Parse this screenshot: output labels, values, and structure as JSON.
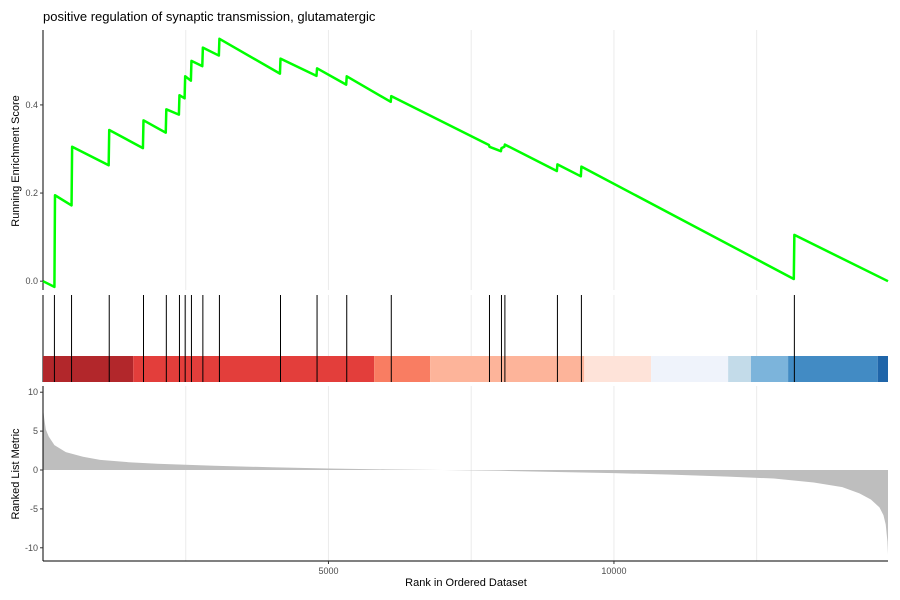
{
  "chart_data": {
    "type": "line",
    "title": "positive regulation of synaptic transmission, glutamatergic",
    "xlabel": "Rank in Ordered Dataset",
    "xlim": [
      0,
      14800
    ],
    "x_ticks": [
      5000,
      10000
    ],
    "x_gridlines": [
      2500,
      5000,
      7500,
      10000,
      12500
    ],
    "grid": true,
    "line_color": "#00ff00",
    "panels": [
      {
        "name": "running_enrichment_score",
        "ylabel": "Running Enrichment Score",
        "ylim": [
          -0.02,
          0.57
        ],
        "y_ticks": [
          0.0,
          0.2,
          0.4
        ],
        "y_tick_labels": [
          "0.0",
          "0.2",
          "0.4"
        ],
        "es_curve": {
          "x": [
            0,
            200,
            210,
            500,
            510,
            1150,
            1160,
            1750,
            1760,
            2150,
            2160,
            2380,
            2390,
            2480,
            2490,
            2590,
            2600,
            2790,
            2800,
            3080,
            3090,
            4150,
            4160,
            4790,
            4800,
            5310,
            5320,
            6090,
            6100,
            7810,
            7820,
            8020,
            8030,
            8080,
            8090,
            9000,
            9010,
            9420,
            9430,
            13150,
            13160,
            14800
          ],
          "y": [
            0.0,
            -0.013,
            0.195,
            0.172,
            0.305,
            0.263,
            0.343,
            0.302,
            0.365,
            0.337,
            0.39,
            0.378,
            0.422,
            0.415,
            0.465,
            0.455,
            0.5,
            0.488,
            0.53,
            0.512,
            0.55,
            0.471,
            0.505,
            0.466,
            0.483,
            0.446,
            0.465,
            0.407,
            0.42,
            0.309,
            0.305,
            0.295,
            0.302,
            0.305,
            0.31,
            0.25,
            0.265,
            0.238,
            0.26,
            0.005,
            0.105,
            0.0
          ]
        }
      },
      {
        "name": "gene_set_hits",
        "hits": [
          200,
          500,
          1160,
          1760,
          2160,
          2390,
          2490,
          2600,
          2800,
          3090,
          4160,
          4800,
          5320,
          6100,
          7820,
          8030,
          8090,
          9010,
          9430,
          13160
        ],
        "color_bands": [
          {
            "from": 0,
            "to": 1580,
            "color": "#b2272b"
          },
          {
            "from": 1580,
            "to": 5800,
            "color": "#e33e3b"
          },
          {
            "from": 5800,
            "to": 6780,
            "color": "#f97d62"
          },
          {
            "from": 6780,
            "to": 9480,
            "color": "#fdb49a"
          },
          {
            "from": 9480,
            "to": 10650,
            "color": "#fee3d9"
          },
          {
            "from": 10650,
            "to": 12000,
            "color": "#eff3fb"
          },
          {
            "from": 12000,
            "to": 12400,
            "color": "#c3dbe9"
          },
          {
            "from": 12400,
            "to": 13050,
            "color": "#7cb4db"
          },
          {
            "from": 13050,
            "to": 14620,
            "color": "#428bc4"
          },
          {
            "from": 14620,
            "to": 14800,
            "color": "#1f65a9"
          }
        ]
      },
      {
        "name": "ranked_list_metric",
        "ylabel": "Ranked List Metric",
        "ylim": [
          -11.7,
          10.8
        ],
        "y_ticks": [
          10,
          5,
          0,
          -5,
          -10
        ],
        "y_tick_labels": [
          "10",
          "5",
          "0",
          "-5",
          "-10"
        ],
        "fill_color": "#bebebe",
        "metric": {
          "x": [
            0,
            20,
            50,
            100,
            200,
            400,
            700,
            1000,
            1500,
            2000,
            3000,
            4000,
            5000,
            6000,
            7000,
            8000,
            9000,
            10000,
            11000,
            12000,
            12800,
            13500,
            14000,
            14300,
            14500,
            14650,
            14720,
            14760,
            14790,
            14800
          ],
          "y": [
            8.0,
            6.7,
            5.2,
            4.3,
            3.2,
            2.3,
            1.7,
            1.3,
            1.0,
            0.8,
            0.55,
            0.35,
            0.2,
            0.08,
            0.0,
            -0.1,
            -0.25,
            -0.4,
            -0.6,
            -0.85,
            -1.1,
            -1.6,
            -2.2,
            -3.0,
            -3.8,
            -4.8,
            -5.8,
            -7.0,
            -9.2,
            -10.9
          ]
        }
      }
    ]
  }
}
